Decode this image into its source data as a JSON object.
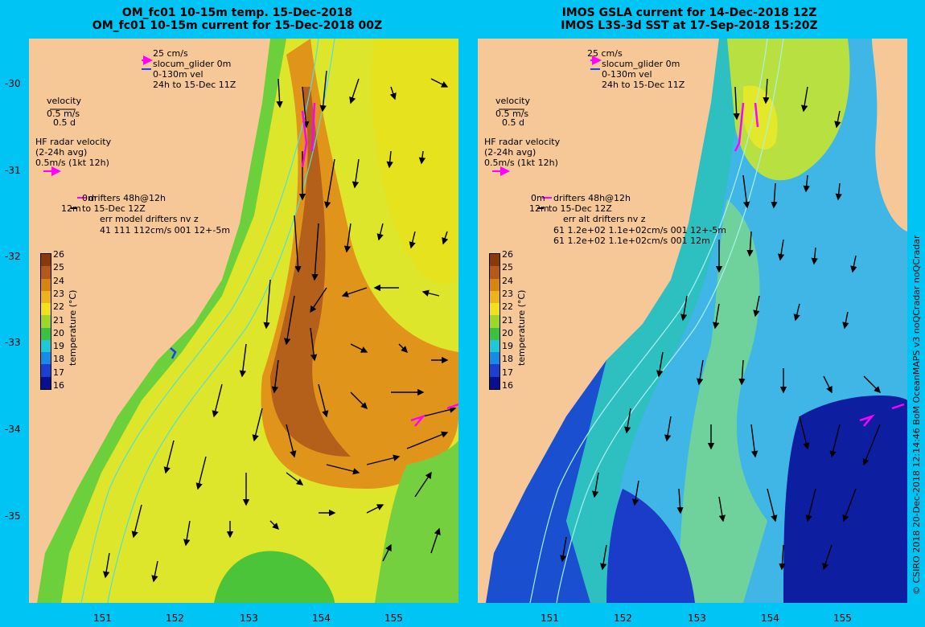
{
  "left": {
    "title1": "OM_fc01 10-15m temp. 15-Dec-2018",
    "title2": "OM_fc01 10-15m current for 15-Dec-2018 00Z",
    "err_line1": "err model drifters nv z",
    "err_line2": "41 111 112cm/s 001 12+-5m"
  },
  "right": {
    "title1": "IMOS GSLA current for 14-Dec-2018 12Z",
    "title2": "IMOS L3S-3d SST at 17-Sep-2018 15:20Z",
    "err_line1": "err alt drifters nv z",
    "err_line2": "61 1.2e+02 1.1e+02cm/s 001 12+-5m",
    "err_line3": "61 1.2e+02 1.1e+02cm/s 001 12m"
  },
  "legend": {
    "scale": "25 cm/s",
    "glider": "slocum_glider 0m",
    "vel": "0-130m vel",
    "window": "24h to 15-Dec 11Z",
    "velocity": "velocity",
    "vel_scale": "0.5 m/s",
    "vel_days": "0.5 d",
    "hf1": "HF radar velocity",
    "hf2": "(2-24h avg)",
    "hf3": "0.5m/s (1kt 12h)",
    "drift0m": "0m",
    "drift_label": "drifters 48h@12h",
    "drift12m": "12m",
    "drift_to": "to 15-Dec 12Z"
  },
  "axes": {
    "lat_ticks": [
      "-30",
      "-31",
      "-32",
      "-33",
      "-34",
      "-35"
    ],
    "lon_ticks": [
      "151",
      "152",
      "153",
      "154",
      "155"
    ]
  },
  "colorbar": {
    "ticks": [
      "26",
      "25",
      "24",
      "23",
      "22",
      "21",
      "20",
      "19",
      "18",
      "17",
      "16"
    ],
    "label": "temperature (°C)",
    "colors": [
      "#8a3a0a",
      "#b35a1a",
      "#d6860e",
      "#ecb41a",
      "#f2e01c",
      "#9ed62a",
      "#3cc040",
      "#1fc8d8",
      "#1a8ae8",
      "#1d3fd0",
      "#0a0e90"
    ]
  },
  "credit": "© CSIRO 2018   20-Dec-2018 12:14:46 BoM OceanMAPS v3 noQCradar noQCradar"
}
